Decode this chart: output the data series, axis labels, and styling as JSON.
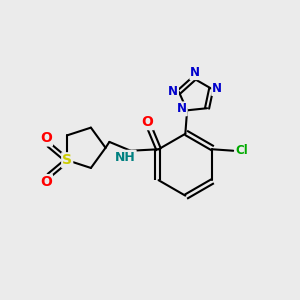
{
  "background_color": "#ebebeb",
  "bond_color": "#000000",
  "atom_colors": {
    "N": "#0000cc",
    "O": "#ff0000",
    "S": "#cccc00",
    "Cl": "#00aa00",
    "NH": "#008080",
    "C": "#000000"
  },
  "figsize": [
    3.0,
    3.0
  ],
  "dpi": 100
}
